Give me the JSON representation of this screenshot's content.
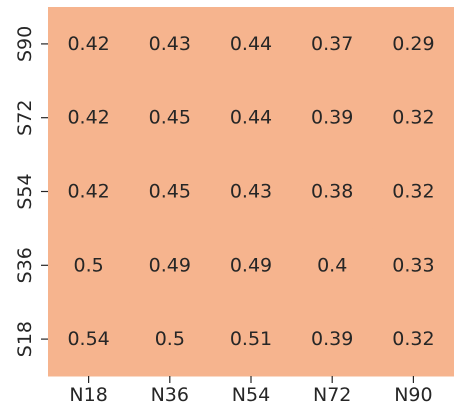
{
  "chart_data": {
    "type": "heatmap",
    "title": "",
    "xlabel": "",
    "ylabel": "",
    "x_categories": [
      "N18",
      "N36",
      "N54",
      "N72",
      "N90"
    ],
    "y_categories": [
      "S90",
      "S72",
      "S54",
      "S36",
      "S18"
    ],
    "values": [
      [
        0.42,
        0.43,
        0.44,
        0.37,
        0.29
      ],
      [
        0.42,
        0.45,
        0.44,
        0.39,
        0.32
      ],
      [
        0.42,
        0.45,
        0.43,
        0.38,
        0.32
      ],
      [
        0.5,
        0.49,
        0.49,
        0.4,
        0.33
      ],
      [
        0.54,
        0.5,
        0.51,
        0.39,
        0.32
      ]
    ],
    "cell_color": "#f6b48e",
    "text_color": "#262626",
    "grid": false,
    "legend": "none"
  }
}
